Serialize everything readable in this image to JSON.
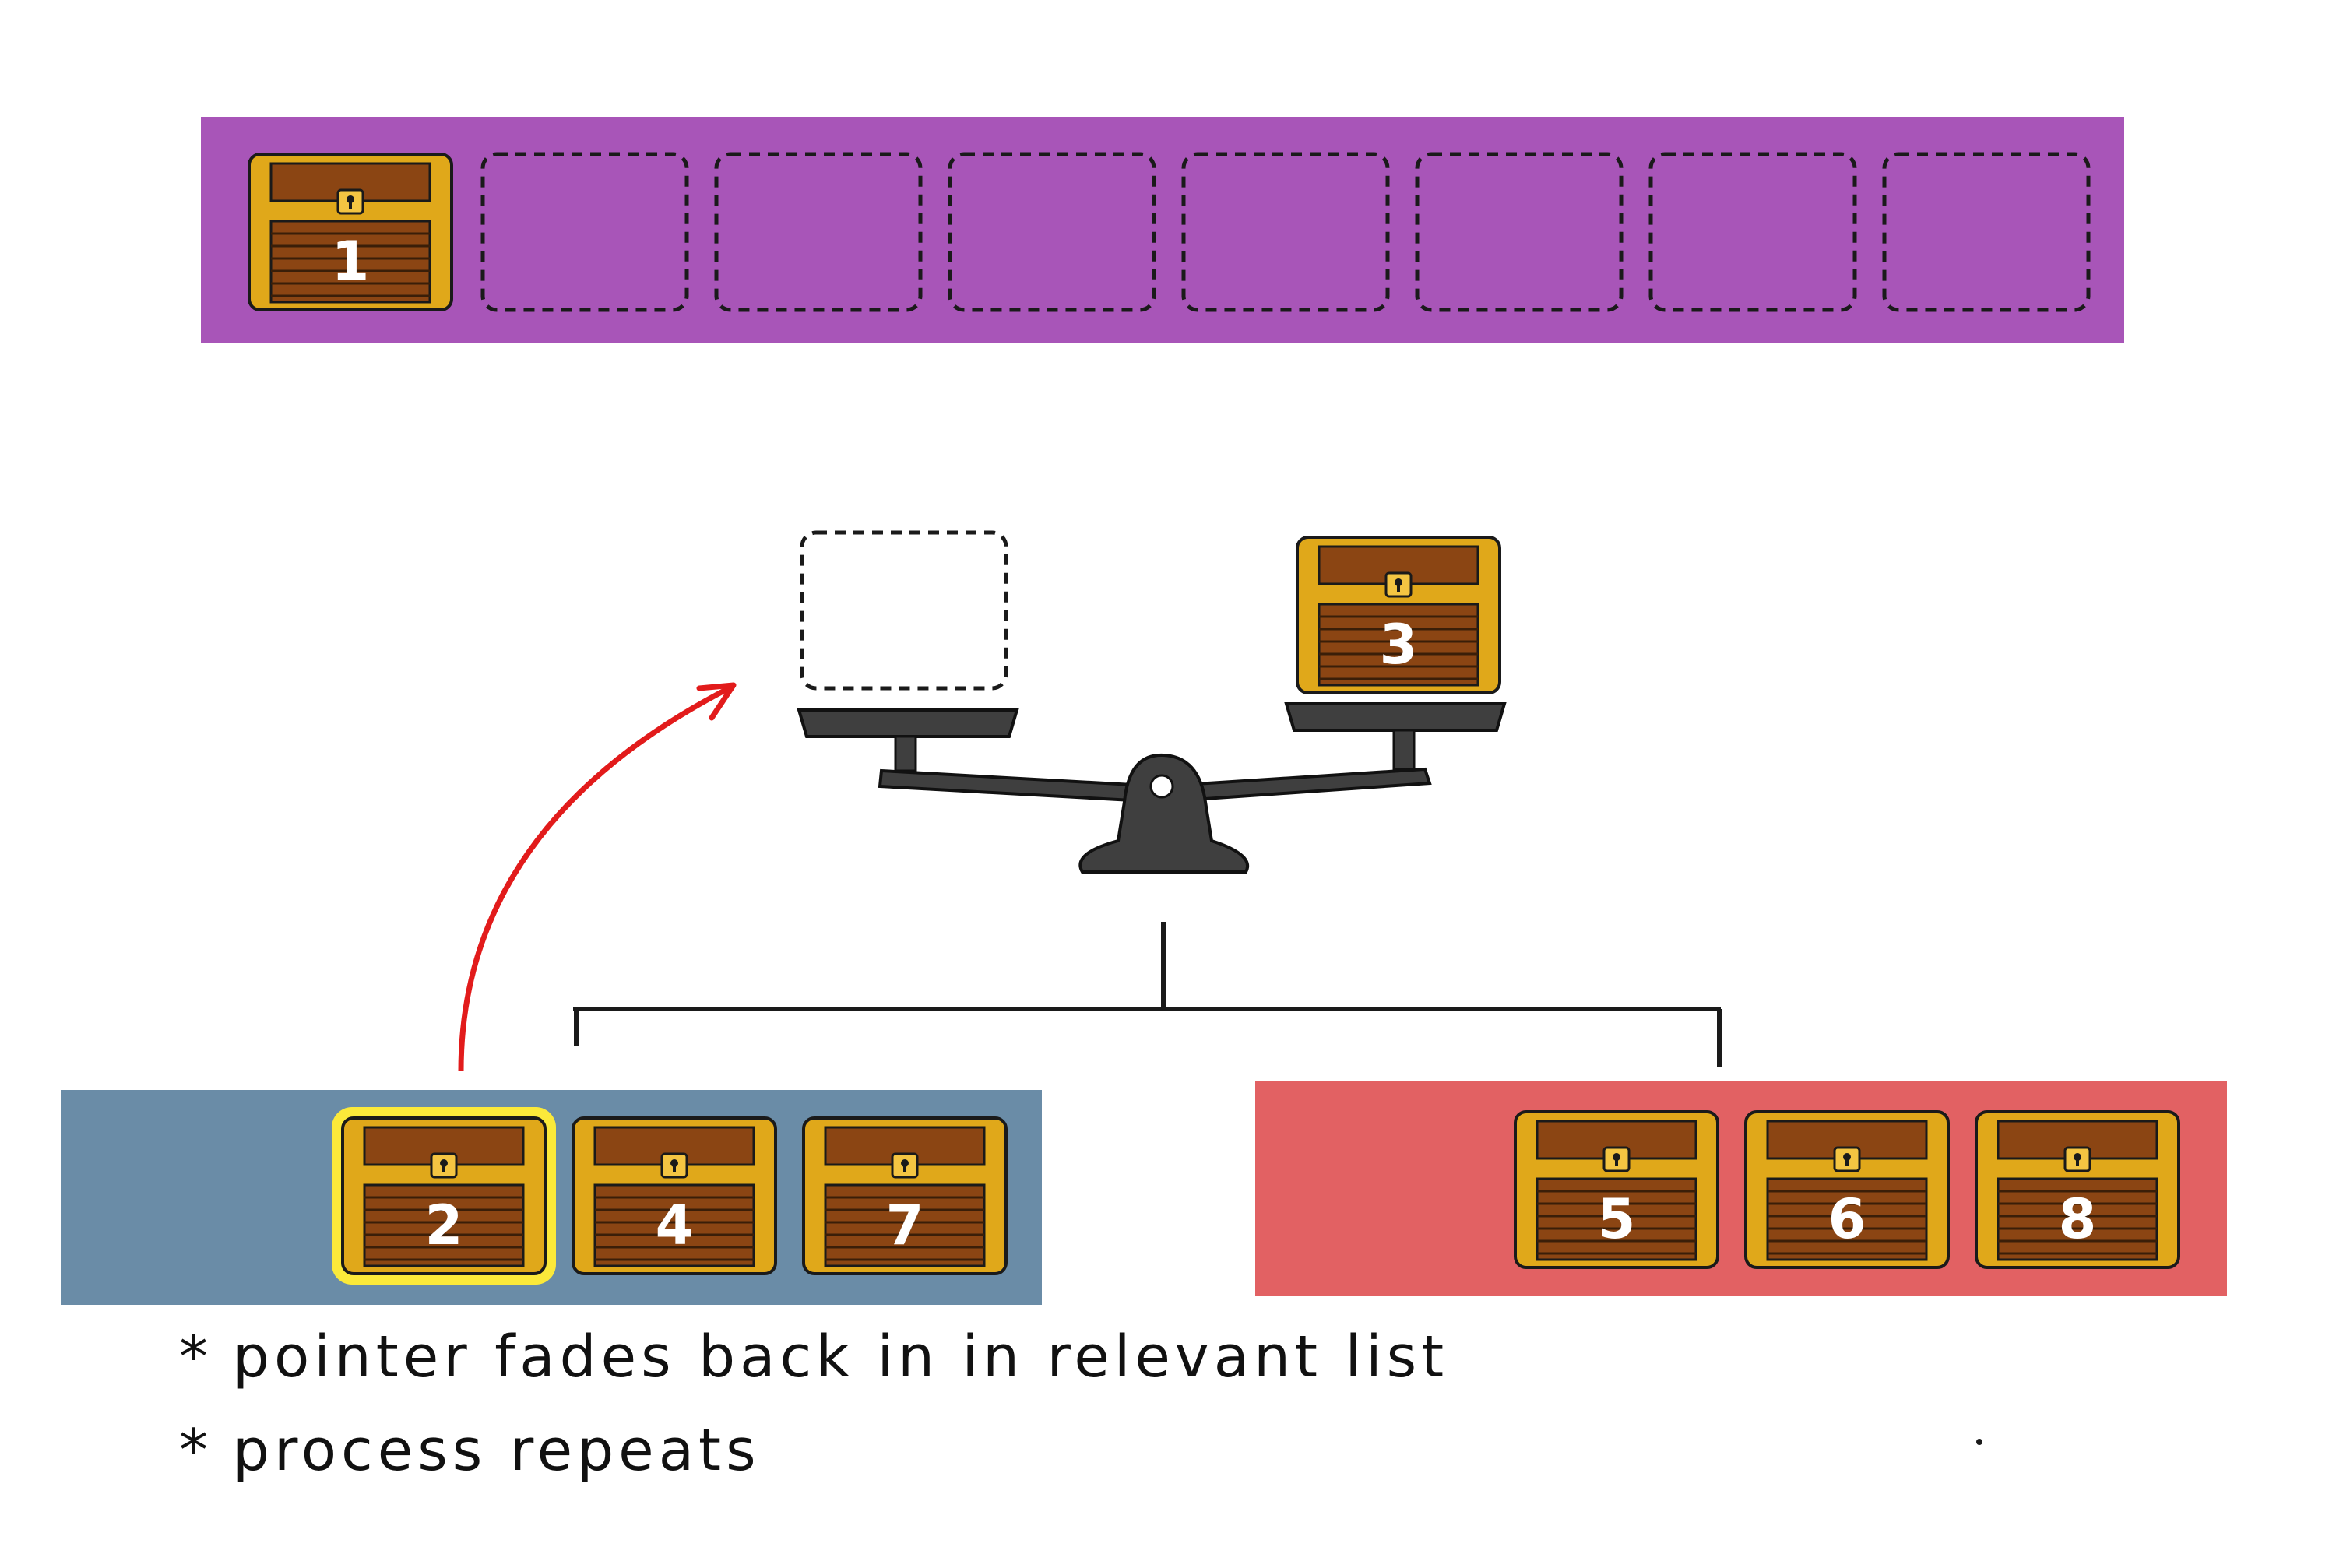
{
  "colors": {
    "merged_list": "#a855b8",
    "left_list": "#6a8ca7",
    "right_list": "#e26163",
    "chest_gold": "#e0a81a",
    "chest_wood": "#8b4513",
    "highlight": "#fbe93a",
    "arrow": "#e21b1b",
    "scale": "#3f3f3f"
  },
  "merged_list": {
    "slots": [
      "1",
      "",
      "",
      "",
      "",
      "",
      "",
      ""
    ]
  },
  "scale": {
    "left_pan": "",
    "right_pan": "3"
  },
  "left_list": {
    "chests": [
      "2",
      "4",
      "7"
    ],
    "highlighted_index": 0
  },
  "right_list": {
    "chests": [
      "5",
      "6",
      "8"
    ]
  },
  "notes": [
    {
      "bullet": "*",
      "text": "pointer fades back in in relevant list"
    },
    {
      "bullet": "*",
      "text": "process repeats"
    }
  ]
}
